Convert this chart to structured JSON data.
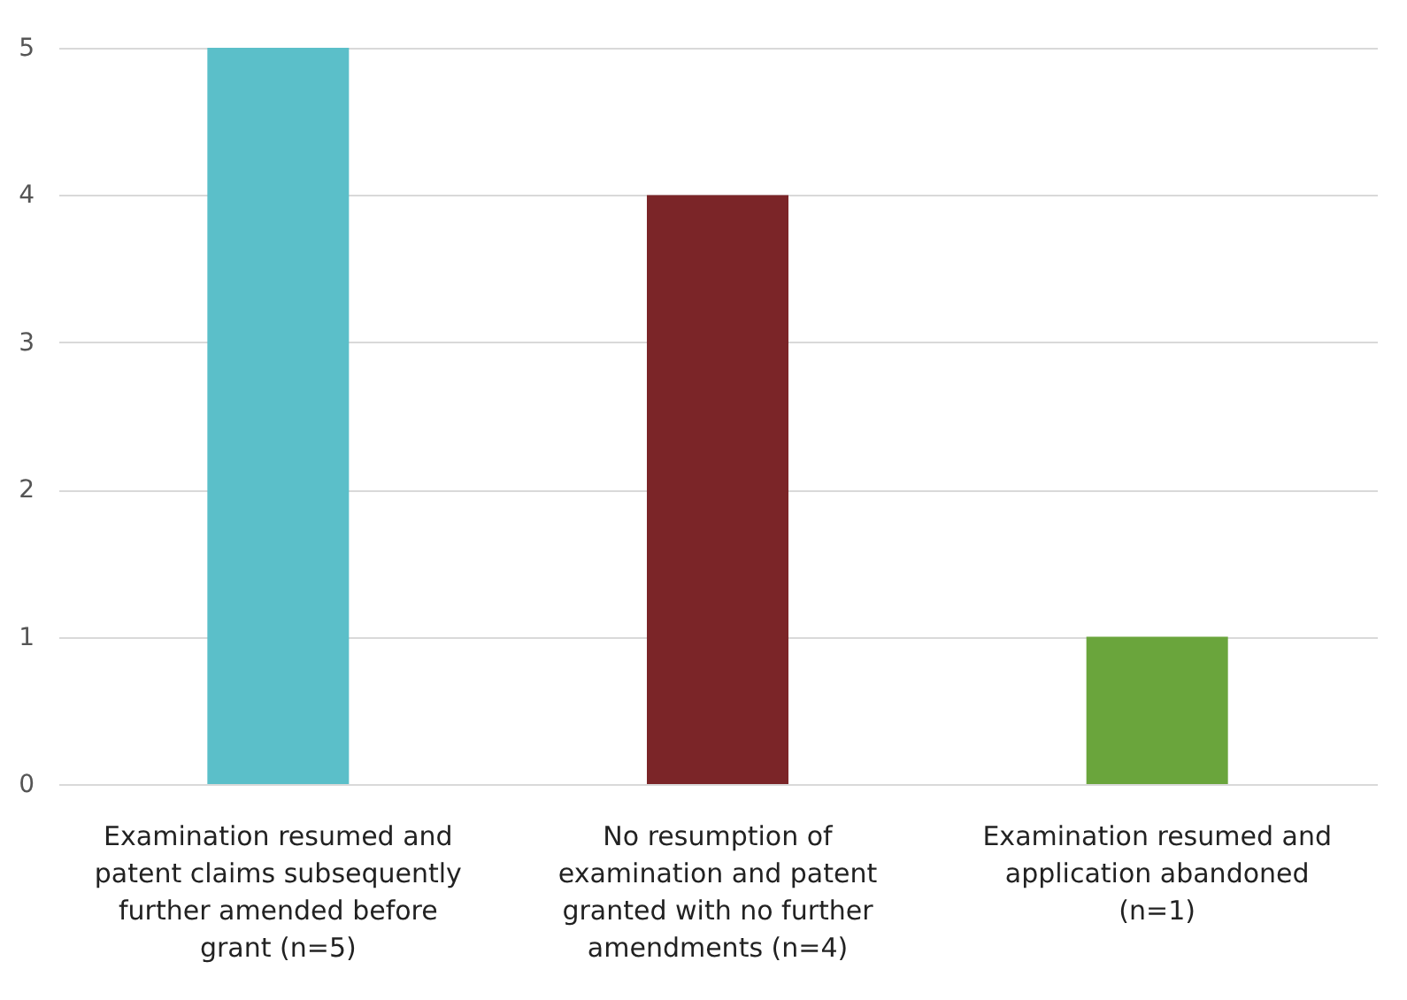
{
  "chart_data": {
    "type": "bar",
    "categories": [
      "Examination resumed and patent claims subsequently further amended before grant (n=5)",
      "No resumption of examination and patent granted with no further amendments (n=4)",
      "Examination resumed and application abandoned (n=1)"
    ],
    "values": [
      5,
      4,
      1
    ],
    "colors": [
      "#5bbfc9",
      "#7b2528",
      "#6aa53c"
    ],
    "ylim": [
      0,
      5
    ],
    "yticks": [
      0,
      1,
      2,
      3,
      4,
      5
    ],
    "grid": "y"
  }
}
